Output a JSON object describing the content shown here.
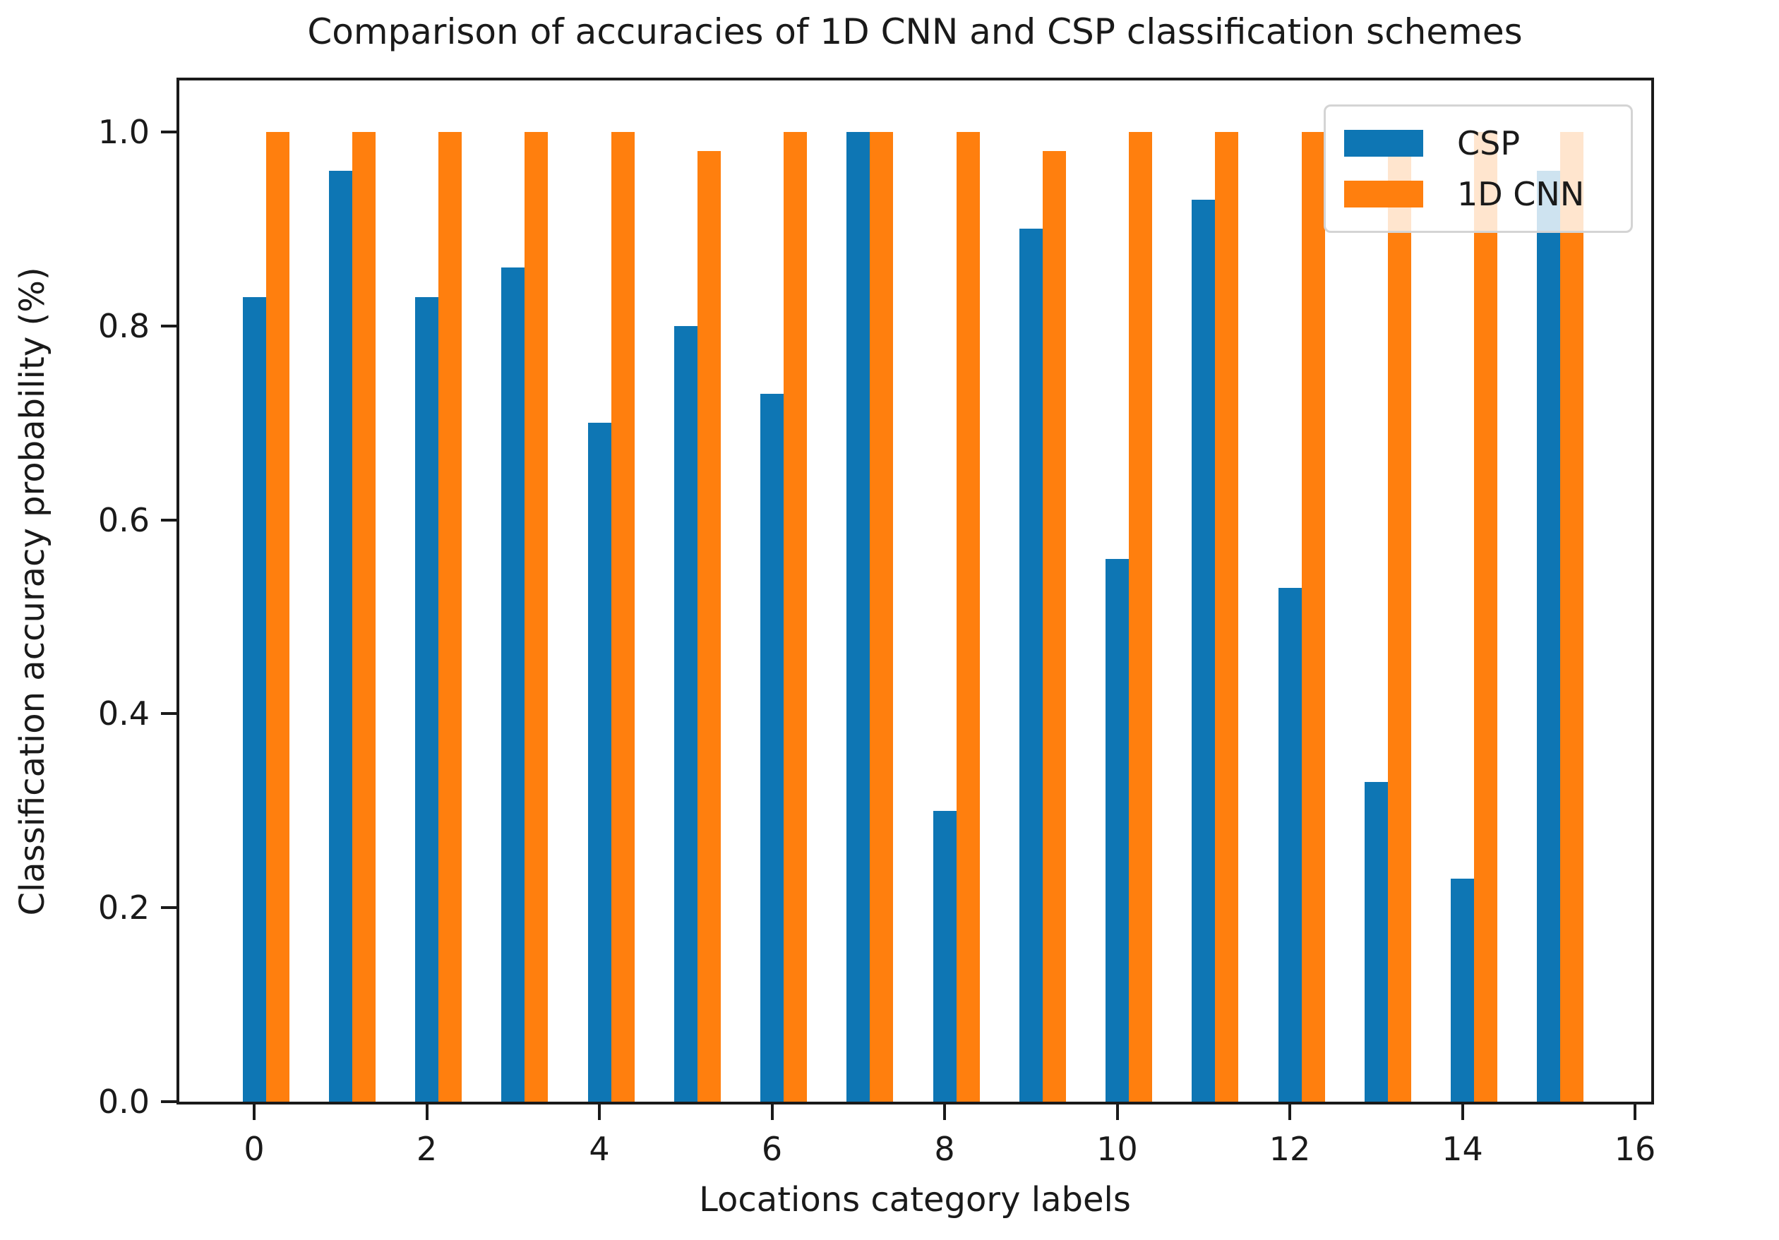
{
  "figure": {
    "title": "Comparison of accuracies of 1D CNN and CSP classification schemes",
    "xlabel": "Locations category labels",
    "ylabel": "Classification accuracy probability (%)"
  },
  "legend": {
    "entries": [
      "CSP",
      "1D CNN"
    ]
  },
  "axes": {
    "y_tick_labels": [
      "0.0",
      "0.2",
      "0.4",
      "0.6",
      "0.8",
      "1.0"
    ],
    "x_tick_labels": [
      "0",
      "2",
      "4",
      "6",
      "8",
      "10",
      "12",
      "14",
      "16"
    ]
  },
  "colors": {
    "csp_blue": "#0e76b4",
    "cnn_orange": "#ff7f0e",
    "spine": "#1a1a1a",
    "legend_border": "#d4d4d4"
  },
  "chart_data": {
    "type": "bar",
    "title": "Comparison of accuracies of 1D CNN and CSP classification schemes",
    "xlabel": "Locations category labels",
    "ylabel": "Classification accuracy probability (%)",
    "categories": [
      0,
      1,
      2,
      3,
      4,
      5,
      6,
      7,
      8,
      9,
      10,
      11,
      12,
      13,
      14,
      15
    ],
    "series": [
      {
        "name": "CSP",
        "color": "#0e76b4",
        "values": [
          0.83,
          0.96,
          0.83,
          0.86,
          0.7,
          0.8,
          0.73,
          1.0,
          0.3,
          0.9,
          0.56,
          0.93,
          0.53,
          0.33,
          0.23,
          0.96
        ]
      },
      {
        "name": "1D CNN",
        "color": "#ff7f0e",
        "values": [
          1.0,
          1.0,
          1.0,
          1.0,
          1.0,
          0.98,
          1.0,
          1.0,
          1.0,
          0.98,
          1.0,
          1.0,
          1.0,
          1.0,
          1.0,
          1.0
        ]
      }
    ],
    "yticks": [
      0.0,
      0.2,
      0.4,
      0.6,
      0.8,
      1.0
    ],
    "xticks": [
      0,
      2,
      4,
      6,
      8,
      10,
      12,
      14,
      16
    ],
    "ylim": [
      0,
      1.056
    ],
    "xlim": [
      -0.95,
      16.28
    ],
    "grid": false,
    "legend_position": "upper right"
  }
}
